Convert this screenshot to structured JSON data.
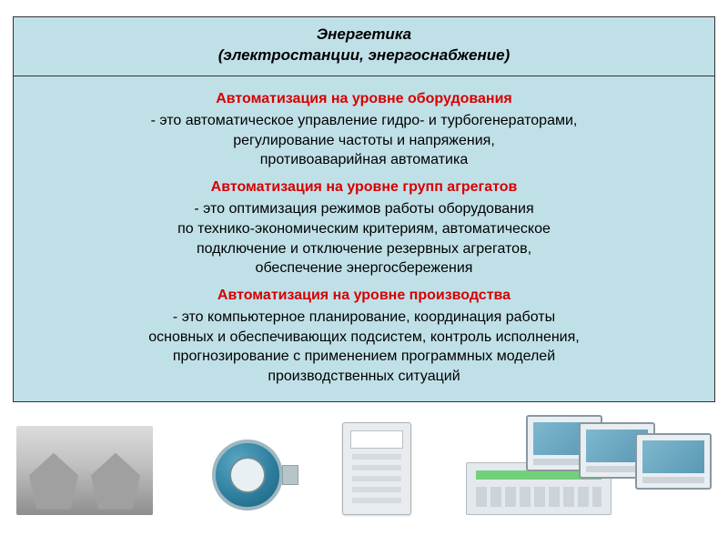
{
  "colors": {
    "panel_bg": "#c0e0e8",
    "panel_border": "#333333",
    "heading_red": "#d60000",
    "text_black": "#000000",
    "page_bg": "#ffffff"
  },
  "typography": {
    "header_fontsize_pt": 13,
    "section_title_fontsize_pt": 12,
    "body_fontsize_pt": 12,
    "header_style": "bold italic",
    "section_title_style": "bold"
  },
  "header": {
    "line1": "Энергетика",
    "line2": "(электростанции, энергоснабжение)"
  },
  "sections": [
    {
      "title": "Автоматизация на уровне оборудования",
      "body": "- это автоматическое управление гидро- и турбогенераторами,\nрегулирование частоты и напряжения,\nпротивоаварийная автоматика"
    },
    {
      "title": "Автоматизация на уровне групп агрегатов",
      "body": "- это оптимизация режимов работы оборудования\nпо технико-экономическим критериям, автоматическое\nподключение и отключение резервных агрегатов,\nобеспечение энергосбережения"
    },
    {
      "title": "Автоматизация на уровне производства",
      "body": "- это компьютерное планирование, координация работы\nосновных и обеспечивающих подсистем, контроль исполнения,\nпрогнозирование с применением программных моделей\nпроизводственных ситуаций"
    }
  ],
  "images": [
    {
      "name": "cooling-towers-photo",
      "style": "grayscale"
    },
    {
      "name": "pressure-transmitter-gauge",
      "accent": "#2f7f9f"
    },
    {
      "name": "control-module-panel",
      "accent": "#e9ecef"
    },
    {
      "name": "hmi-screens-and-rack",
      "accent": "#7fb8cf"
    }
  ]
}
